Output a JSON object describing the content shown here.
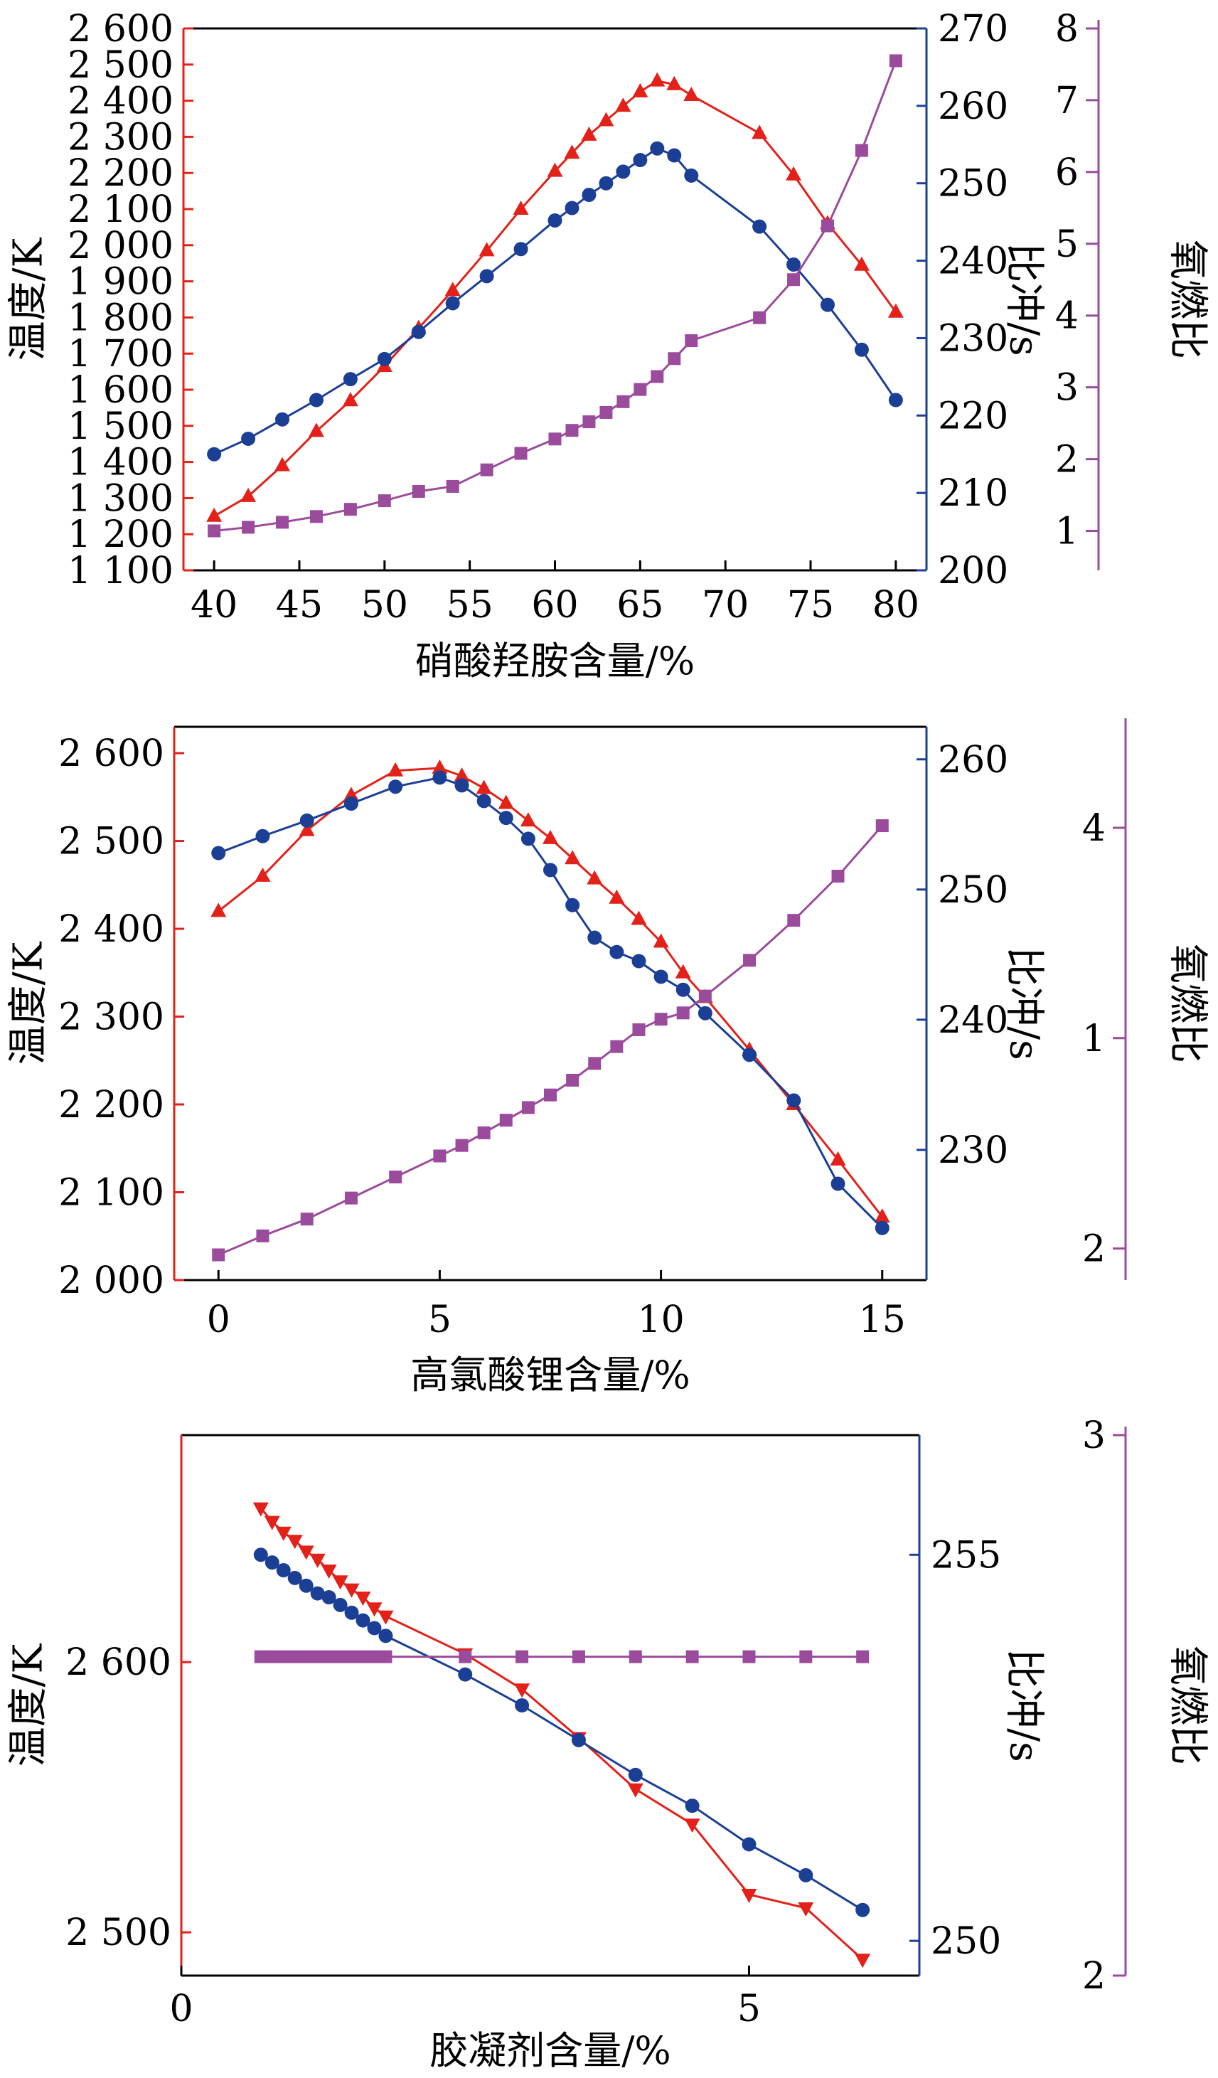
{
  "colors": {
    "temperature": "#e32119",
    "impulse": "#1b3f95",
    "ratio": "#9b4b9b",
    "frame": "#000000"
  },
  "chart_data": [
    {
      "type": "line",
      "xlabel": "硝酸羟胺含量/%",
      "x_ticks": [
        "40",
        "45",
        "50",
        "55",
        "60",
        "65",
        "70",
        "75",
        "80"
      ],
      "xlim": [
        38.2,
        81.8
      ],
      "series": [
        {
          "name": "",
          "axis": "left",
          "marker": "triangle-up",
          "x": [
            40,
            42,
            44,
            46,
            48,
            50,
            52,
            54,
            56,
            58,
            60,
            61,
            62,
            63,
            64,
            65,
            66,
            67,
            68,
            72,
            74,
            76,
            78,
            80
          ],
          "values": [
            1250,
            1305,
            1390,
            1485,
            1570,
            1665,
            1770,
            1875,
            1985,
            2100,
            2205,
            2255,
            2305,
            2345,
            2385,
            2425,
            2455,
            2445,
            2415,
            2310,
            2195,
            2060,
            1945,
            1815
          ]
        },
        {
          "name": "",
          "axis": "right",
          "marker": "circle",
          "x": [
            40,
            42,
            44,
            46,
            48,
            50,
            52,
            54,
            56,
            58,
            60,
            61,
            62,
            63,
            64,
            65,
            66,
            67,
            68,
            72,
            74,
            76,
            78,
            80
          ],
          "values": [
            215,
            217,
            219.5,
            222,
            224.7,
            227.3,
            230.8,
            234.5,
            238,
            241.5,
            245.2,
            246.8,
            248.5,
            250,
            251.5,
            253,
            254.5,
            253.6,
            251,
            244.4,
            239.5,
            234.3,
            228.5,
            222
          ]
        },
        {
          "name": "",
          "axis": "right2",
          "marker": "square",
          "x": [
            40,
            42,
            44,
            46,
            48,
            50,
            52,
            54,
            56,
            58,
            60,
            61,
            62,
            63,
            64,
            65,
            66,
            67,
            68,
            72,
            74,
            76,
            78,
            80
          ],
          "values": [
            1.0,
            1.05,
            1.12,
            1.2,
            1.3,
            1.42,
            1.55,
            1.62,
            1.85,
            2.08,
            2.28,
            2.4,
            2.52,
            2.65,
            2.8,
            2.97,
            3.15,
            3.4,
            3.65,
            3.97,
            4.5,
            5.25,
            6.3,
            7.55
          ]
        }
      ],
      "axes": {
        "left": {
          "label": "温度/K",
          "ticks": [
            "1 100",
            "1 200",
            "1 300",
            "1 400",
            "1 500",
            "1 600",
            "1 700",
            "1 800",
            "1 900",
            "2 000",
            "2 100",
            "2 200",
            "2 300",
            "2 400",
            "2 500",
            "2 600"
          ],
          "ylim": [
            1100,
            2600
          ]
        },
        "right": {
          "label": "比冲/s",
          "ticks": [
            "200",
            "210",
            "220",
            "230",
            "240",
            "250",
            "260",
            "270"
          ],
          "ylim": [
            200,
            270
          ]
        },
        "right2": {
          "label": "氧燃比",
          "ticks": [
            "1",
            "2",
            "3",
            "4",
            "5",
            "6",
            "7",
            "8"
          ],
          "ylim": [
            0.45,
            8
          ]
        }
      }
    },
    {
      "type": "line",
      "xlabel": "高氯酸锂含量/%",
      "x_ticks": [
        "0",
        "5",
        "10",
        "15"
      ],
      "xlim": [
        -1,
        16
      ],
      "series": [
        {
          "name": "",
          "axis": "left",
          "marker": "triangle-up",
          "x": [
            0,
            1,
            2,
            3,
            4,
            5,
            5.5,
            6,
            6.5,
            7,
            7.5,
            8,
            8.5,
            9,
            9.5,
            10,
            10.5,
            11,
            12,
            13,
            14,
            15
          ],
          "values": [
            2420,
            2460,
            2512,
            2552,
            2580,
            2583,
            2574,
            2560,
            2543,
            2523,
            2503,
            2480,
            2457,
            2435,
            2411,
            2385,
            2350,
            2322,
            2262,
            2200,
            2137,
            2072
          ]
        },
        {
          "name": "",
          "axis": "right",
          "marker": "circle",
          "x": [
            0,
            1,
            2,
            3,
            4,
            5,
            5.5,
            6,
            6.5,
            7,
            7.5,
            8,
            8.5,
            9,
            9.5,
            10,
            10.5,
            11,
            12,
            13,
            14,
            15
          ],
          "values": [
            252.8,
            254.1,
            255.3,
            256.6,
            257.9,
            258.6,
            258.0,
            256.8,
            255.5,
            253.9,
            251.5,
            248.8,
            246.3,
            245.2,
            244.5,
            243.3,
            242.3,
            240.5,
            237.3,
            233.8,
            227.4,
            224.0
          ]
        },
        {
          "name": "",
          "axis": "right2",
          "marker": "square",
          "x": [
            0,
            1,
            2,
            3,
            4,
            5,
            5.5,
            6,
            6.5,
            7,
            7.5,
            8,
            8.5,
            9,
            9.5,
            10,
            10.5,
            11,
            12,
            13,
            14,
            15
          ],
          "values": [
            1.97,
            2.06,
            2.14,
            2.24,
            2.34,
            2.44,
            2.49,
            2.55,
            2.61,
            2.67,
            2.73,
            2.8,
            2.88,
            2.96,
            3.04,
            3.09,
            3.12,
            3.2,
            3.37,
            3.56,
            3.77,
            4.01
          ]
        }
      ],
      "axes": {
        "left": {
          "label": "温度/K",
          "ticks": [
            "2 000",
            "2 100",
            "2 200",
            "2 300",
            "2 400",
            "2 500",
            "2 600"
          ],
          "ylim": [
            2000,
            2630
          ]
        },
        "right": {
          "label": "比冲/s",
          "ticks": [
            "230",
            "240",
            "250",
            "260"
          ],
          "ylim": [
            220,
            262.5
          ]
        },
        "right2": {
          "label": "氧燃比",
          "ticks": [
            "2",
            "1",
            "4"
          ],
          "ylim": [
            1.85,
            4.48
          ]
        }
      }
    },
    {
      "type": "line",
      "xlabel": "胶凝剂含量/%",
      "x_ticks": [
        "0",
        "5"
      ],
      "xlim": [
        0,
        6.5
      ],
      "series": [
        {
          "name": "",
          "axis": "left",
          "marker": "triangle-down",
          "x": [
            0.7,
            0.8,
            0.9,
            1.0,
            1.1,
            1.2,
            1.3,
            1.4,
            1.5,
            1.6,
            1.7,
            1.8,
            2.5,
            3.0,
            3.5,
            4.0,
            4.5,
            5.0,
            5.5,
            6.0
          ],
          "values": [
            2657,
            2652,
            2648,
            2645,
            2641,
            2638,
            2634,
            2630,
            2627,
            2624,
            2620,
            2617,
            2603,
            2590,
            2572,
            2553,
            2540,
            2514,
            2509,
            2490
          ]
        },
        {
          "name": "",
          "axis": "right",
          "marker": "circle",
          "x": [
            0.7,
            0.8,
            0.9,
            1.0,
            1.1,
            1.2,
            1.3,
            1.4,
            1.5,
            1.6,
            1.7,
            1.8,
            2.5,
            3.0,
            3.5,
            4.0,
            4.5,
            5.0,
            5.5,
            6.0
          ],
          "values": [
            255.0,
            254.9,
            254.8,
            254.7,
            254.6,
            254.5,
            254.45,
            254.35,
            254.25,
            254.15,
            254.05,
            253.95,
            253.45,
            253.05,
            252.6,
            252.15,
            251.75,
            251.25,
            250.85,
            250.4
          ]
        },
        {
          "name": "",
          "axis": "right2",
          "marker": "square",
          "x": [
            0.7,
            0.8,
            0.9,
            1.0,
            1.1,
            1.2,
            1.3,
            1.4,
            1.5,
            1.6,
            1.7,
            1.8,
            2.5,
            3.0,
            3.5,
            4.0,
            4.5,
            5.0,
            5.5,
            6.0
          ],
          "values": [
            2.59,
            2.59,
            2.59,
            2.59,
            2.59,
            2.59,
            2.59,
            2.59,
            2.59,
            2.59,
            2.59,
            2.59,
            2.59,
            2.59,
            2.59,
            2.59,
            2.59,
            2.59,
            2.59,
            2.59
          ]
        }
      ],
      "axes": {
        "left": {
          "label": "温度/K",
          "ticks": [
            "2 500",
            "2 600"
          ],
          "ylim": [
            2484,
            2684
          ]
        },
        "right": {
          "label": "比冲/s",
          "ticks": [
            "250",
            "255"
          ],
          "ylim": [
            249.55,
            256.55
          ]
        },
        "right2": {
          "label": "氧燃比",
          "ticks": [
            "2",
            "3"
          ],
          "ylim": [
            2,
            3
          ]
        }
      }
    }
  ]
}
